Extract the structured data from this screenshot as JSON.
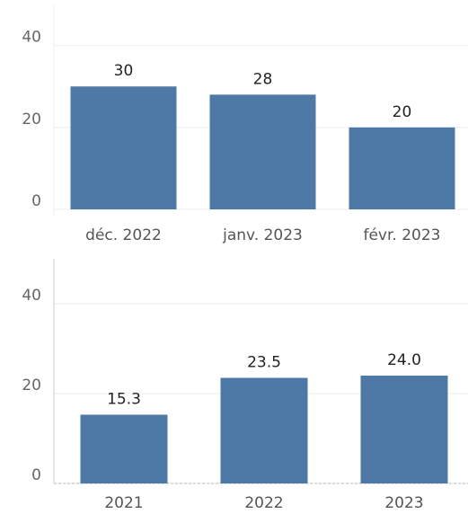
{
  "chart_data": [
    {
      "type": "bar",
      "categories": [
        "déc. 2022",
        "janv. 2023",
        "févr. 2023"
      ],
      "values": [
        30,
        28,
        20
      ],
      "color": "#4e79a7",
      "ylim": [
        0,
        50
      ],
      "yticks": [
        0,
        20,
        40
      ],
      "grid": true
    },
    {
      "type": "bar",
      "categories": [
        "2021",
        "2022",
        "2023"
      ],
      "values": [
        15.3,
        23.5,
        24
      ],
      "value_labels": [
        "15.3",
        "23.5",
        "24.0"
      ],
      "color": "#4e79a7",
      "ylim": [
        0,
        50
      ],
      "yticks": [
        0,
        20,
        40
      ],
      "grid": true
    }
  ]
}
